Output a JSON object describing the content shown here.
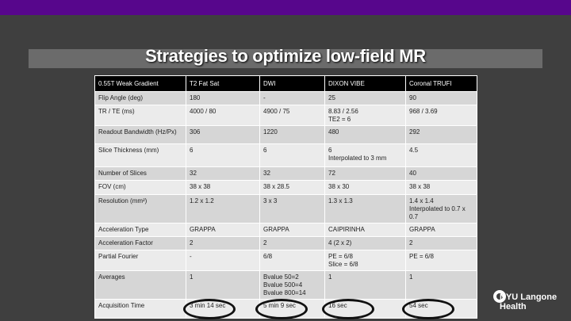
{
  "slide": {
    "title": "Strategies to optimize low-field MR"
  },
  "table": {
    "headers": [
      "0.55T Weak Gradient",
      "T2 Fat Sat",
      "DWI",
      "DIXON VIBE",
      "Coronal TRUFI"
    ],
    "rows": [
      [
        "Flip Angle (deg)",
        "180",
        "-",
        "25",
        "90"
      ],
      [
        "TR / TE (ms)",
        "4000 / 80",
        "4900 / 75",
        "8.83 / 2.56\nTE2 = 6",
        "968 / 3.69"
      ],
      [
        "Readout Bandwidth (Hz/Px)",
        "306",
        "1220",
        "480",
        "292"
      ],
      [
        "Slice Thickness (mm)",
        "6",
        "6",
        "6\nInterpolated to 3 mm",
        "4.5"
      ],
      [
        "Number of Slices",
        "32",
        "32",
        "72",
        "40"
      ],
      [
        "FOV (cm)",
        "38 x 38",
        "38 x 28.5",
        "38 x 30",
        "38 x 38"
      ],
      [
        "Resolution (mm²)",
        "1.2 x 1.2",
        "3  x  3",
        "1.3 x 1.3",
        "1.4 x 1.4\nInterpolated to 0.7 x\n0.7"
      ],
      [
        "Acceleration Type",
        "GRAPPA",
        "GRAPPA",
        "CAIPIRINHA",
        "GRAPPA"
      ],
      [
        "Acceleration Factor",
        "2",
        "2",
        "4  (2 x 2)",
        "2"
      ],
      [
        "Partial Fourier",
        "-",
        "6/8",
        "PE = 6/8\nSlice = 6/8",
        "PE = 6/8"
      ],
      [
        "Averages",
        "1",
        "Bvalue 50=2\nBvalue 500=4\nBvalue 800=14",
        "1",
        "1"
      ],
      [
        "Acquisition Time",
        "3 min 14 sec",
        "5 min 9 sec",
        "16 sec",
        "54 sec"
      ]
    ]
  },
  "logo": {
    "line1": "NYU Langone",
    "line2": "Health"
  },
  "colors": {
    "brand_purple": "#57068c",
    "background": "#3f3f3f",
    "title_band": "#6b6b6b"
  }
}
